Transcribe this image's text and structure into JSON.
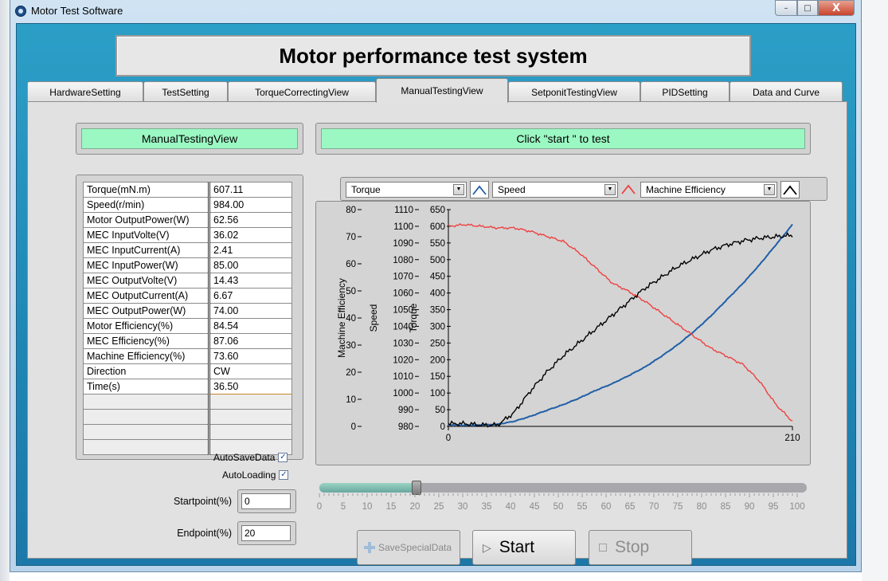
{
  "window": {
    "title": "Motor Test Software",
    "close_glyph": "X",
    "minimize_glyph": "–",
    "maximize_glyph": "□"
  },
  "banner": {
    "title": "Motor performance test system"
  },
  "tabs": [
    {
      "label": "HardwareSetting"
    },
    {
      "label": "TestSetting"
    },
    {
      "label": "TorqueCorrectingView"
    },
    {
      "label": "ManualTestingView"
    },
    {
      "label": "SetponitTestingView"
    },
    {
      "label": "PIDSetting"
    },
    {
      "label": "Data and Curve"
    }
  ],
  "active_tab": "ManualTestingView",
  "left_header": "ManualTestingView",
  "status_header": "Click \"start \" to test",
  "readings": [
    {
      "name": "Torque(mN.m)",
      "value": "607.11"
    },
    {
      "name": "Speed(r/min)",
      "value": "984.00"
    },
    {
      "name": "Motor OutputPower(W)",
      "value": "62.56"
    },
    {
      "name": "MEC InputVolte(V)",
      "value": "36.02"
    },
    {
      "name": "MEC InputCurrent(A)",
      "value": "2.41"
    },
    {
      "name": "MEC InputPower(W)",
      "value": "85.00"
    },
    {
      "name": "MEC OutputVolte(V)",
      "value": "14.43"
    },
    {
      "name": "MEC OutputCurrent(A)",
      "value": "6.67"
    },
    {
      "name": "MEC OutputPower(W)",
      "value": "74.00"
    },
    {
      "name": "Motor Efficiency(%)",
      "value": "84.54"
    },
    {
      "name": "MEC Efficiency(%)",
      "value": "87.06"
    },
    {
      "name": "Machine Efficiency(%)",
      "value": "73.60"
    },
    {
      "name": "Direction",
      "value": "CW"
    },
    {
      "name": "Time(s)",
      "value": "36.50"
    }
  ],
  "options": {
    "autosave_label": "AutoSaveData",
    "autosave_checked": true,
    "autoload_label": "AutoLoading",
    "autoload_checked": true,
    "check_glyph": "✓",
    "startpoint_label": "Startpoint(%)",
    "startpoint_value": "0",
    "endpoint_label": "Endpoint(%)",
    "endpoint_value": "20"
  },
  "selectors": [
    {
      "value": "Torque",
      "color": "#1f5fa8"
    },
    {
      "value": "Speed",
      "color": "#ef4040"
    },
    {
      "value": "Machine Efficiency",
      "color": "#000000"
    }
  ],
  "slider": {
    "value": 20,
    "min": 0,
    "max": 100,
    "ticks": [
      "0",
      "5",
      "10",
      "15",
      "20",
      "25",
      "30",
      "35",
      "40",
      "45",
      "50",
      "55",
      "60",
      "65",
      "70",
      "75",
      "80",
      "85",
      "90",
      "95",
      "100"
    ]
  },
  "buttons": {
    "save_special": "SaveSpecialData",
    "start": "Start",
    "stop": "Stop"
  },
  "chart_data": {
    "type": "line",
    "x_range": [
      0,
      210
    ],
    "x_ticks": [
      "0",
      "210"
    ],
    "grid": false,
    "axes": [
      {
        "label": "Machine Efficiency",
        "range": [
          0,
          80
        ],
        "ticks": [
          "80",
          "70",
          "60",
          "50",
          "40",
          "30",
          "20",
          "10",
          "0"
        ]
      },
      {
        "label": "Speed",
        "range": [
          980,
          1110
        ],
        "ticks": [
          "1110",
          "1100",
          "1090",
          "1080",
          "1070",
          "1060",
          "1050",
          "1040",
          "1030",
          "1020",
          "1010",
          "1000",
          "990",
          "980"
        ]
      },
      {
        "label": "Torque",
        "range": [
          0,
          650
        ],
        "ticks": [
          "650",
          "600",
          "550",
          "500",
          "450",
          "400",
          "350",
          "300",
          "250",
          "200",
          "150",
          "100",
          "50",
          "0"
        ]
      }
    ],
    "series": [
      {
        "axis": "Torque",
        "color": "#1f5fa8",
        "x": [
          0,
          10,
          20,
          30,
          40,
          50,
          60,
          70,
          80,
          90,
          100,
          110,
          120,
          130,
          140,
          150,
          160,
          170,
          180,
          190,
          200,
          210
        ],
        "y": [
          5,
          3,
          4,
          6,
          15,
          30,
          48,
          65,
          85,
          108,
          128,
          152,
          178,
          210,
          245,
          285,
          330,
          380,
          430,
          485,
          545,
          605
        ]
      },
      {
        "axis": "Speed",
        "color": "#ef4040",
        "x": [
          0,
          10,
          20,
          30,
          40,
          50,
          60,
          70,
          80,
          90,
          100,
          110,
          120,
          130,
          140,
          150,
          160,
          170,
          180,
          190,
          200,
          210
        ],
        "y": [
          1100,
          1101,
          1100,
          1099,
          1099,
          1097,
          1094,
          1091,
          1084,
          1075,
          1066,
          1061,
          1055,
          1048,
          1041,
          1034,
          1027,
          1022,
          1017,
          1007,
          993,
          983
        ]
      },
      {
        "axis": "Machine Efficiency",
        "color": "#000000",
        "x": [
          0,
          10,
          20,
          30,
          40,
          50,
          60,
          70,
          80,
          90,
          100,
          110,
          120,
          130,
          140,
          150,
          160,
          170,
          180,
          190,
          200,
          210
        ],
        "y": [
          1,
          1,
          0.5,
          0.5,
          5,
          13,
          20,
          26,
          31,
          36,
          41,
          46,
          51,
          55,
          59,
          62,
          65,
          67,
          68.5,
          69.5,
          70,
          70.5
        ]
      }
    ]
  }
}
